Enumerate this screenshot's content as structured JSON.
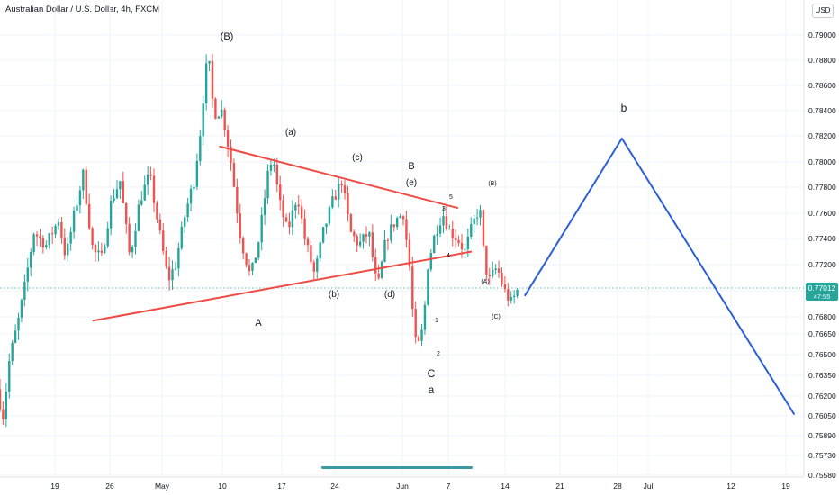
{
  "header": {
    "title": "Australian Dollar / U.S. Dollar, 4h, FXCM",
    "currency_button": "USD"
  },
  "colors": {
    "up": "#26a69a",
    "down": "#ef5350",
    "wave_red": "#ef4a43",
    "projection_blue": "#2b5fd9",
    "last_price_bg": "#26a69a",
    "scrollbar": "#3a9aa3"
  },
  "last_price": {
    "value": "0.77012",
    "countdown": "47:55"
  },
  "chart_data": {
    "type": "candlestick",
    "title": "Australian Dollar / U.S. Dollar, 4h, FXCM",
    "ylim": [
      0.7558,
      0.7921
    ],
    "y_ticks": [
      "0.79000",
      "0.78800",
      "0.78600",
      "0.78400",
      "0.78200",
      "0.78000",
      "0.77800",
      "0.77600",
      "0.77400",
      "0.77200",
      "0.77000",
      "0.76800",
      "0.76650",
      "0.76500",
      "0.76350",
      "0.76200",
      "0.76050",
      "0.75890",
      "0.75730",
      "0.75580"
    ],
    "x_ticks": [
      "19",
      "26",
      "May",
      "10",
      "17",
      "24",
      "Jun",
      "7",
      "14",
      "21",
      "28",
      "Jul",
      "12",
      "19"
    ],
    "price_path": [
      [
        0.0,
        0.7625
      ],
      [
        0.5,
        0.7605
      ],
      [
        1.0,
        0.7645
      ],
      [
        1.6,
        0.767
      ],
      [
        2.2,
        0.77
      ],
      [
        3.0,
        0.7745
      ],
      [
        4.0,
        0.7735
      ],
      [
        5.0,
        0.7755
      ],
      [
        5.6,
        0.7725
      ],
      [
        6.3,
        0.776
      ],
      [
        7.0,
        0.779
      ],
      [
        7.8,
        0.773
      ],
      [
        8.5,
        0.7725
      ],
      [
        9.3,
        0.777
      ],
      [
        10.0,
        0.7785
      ],
      [
        10.8,
        0.7725
      ],
      [
        11.6,
        0.777
      ],
      [
        12.4,
        0.779
      ],
      [
        13.2,
        0.7745
      ],
      [
        13.9,
        0.7708
      ],
      [
        14.5,
        0.772
      ],
      [
        15.3,
        0.776
      ],
      [
        16.0,
        0.7785
      ],
      [
        16.6,
        0.783
      ],
      [
        16.9,
        0.787
      ],
      [
        17.2,
        0.788
      ],
      [
        17.6,
        0.7838
      ],
      [
        18.3,
        0.784
      ],
      [
        19.0,
        0.78
      ],
      [
        19.8,
        0.774
      ],
      [
        20.6,
        0.771
      ],
      [
        21.3,
        0.774
      ],
      [
        22.0,
        0.779
      ],
      [
        22.4,
        0.7805
      ],
      [
        22.9,
        0.777
      ],
      [
        23.6,
        0.7745
      ],
      [
        24.4,
        0.7775
      ],
      [
        25.0,
        0.774
      ],
      [
        25.8,
        0.7712
      ],
      [
        26.5,
        0.7745
      ],
      [
        27.3,
        0.777
      ],
      [
        28.0,
        0.7785
      ],
      [
        28.7,
        0.7745
      ],
      [
        29.4,
        0.7735
      ],
      [
        30.2,
        0.7745
      ],
      [
        30.9,
        0.77
      ],
      [
        31.6,
        0.774
      ],
      [
        32.4,
        0.7755
      ],
      [
        33.0,
        0.776
      ],
      [
        33.6,
        0.771
      ],
      [
        33.9,
        0.766
      ],
      [
        34.2,
        0.7655
      ],
      [
        34.6,
        0.767
      ],
      [
        35.0,
        0.772
      ],
      [
        35.6,
        0.7745
      ],
      [
        36.2,
        0.776
      ],
      [
        36.8,
        0.7745
      ],
      [
        37.4,
        0.774
      ],
      [
        38.0,
        0.773
      ],
      [
        38.6,
        0.775
      ],
      [
        39.2,
        0.7765
      ],
      [
        39.6,
        0.772
      ],
      [
        40.0,
        0.7708
      ],
      [
        40.6,
        0.7718
      ],
      [
        41.2,
        0.77
      ],
      [
        41.8,
        0.769
      ],
      [
        42.2,
        0.77
      ]
    ],
    "annotations": [
      {
        "text": "(B)",
        "color": "red",
        "role": "wave"
      },
      {
        "text": "(a)",
        "role": "wave"
      },
      {
        "text": "(c)",
        "role": "wave"
      },
      {
        "text": "(e)",
        "role": "wave"
      },
      {
        "text": "B",
        "role": "wave"
      },
      {
        "text": "A",
        "role": "wave"
      },
      {
        "text": "(b)",
        "role": "wave"
      },
      {
        "text": "(d)",
        "role": "wave"
      },
      {
        "text": "C",
        "role": "wave"
      },
      {
        "text": "a",
        "role": "wave"
      },
      {
        "text": "b",
        "role": "wave"
      },
      {
        "text": "1",
        "role": "minor"
      },
      {
        "text": "2",
        "role": "minor"
      },
      {
        "text": "3",
        "role": "minor"
      },
      {
        "text": "4",
        "role": "minor"
      },
      {
        "text": "5",
        "role": "minor"
      },
      {
        "text": "(B)",
        "role": "minor"
      },
      {
        "text": "(A)",
        "role": "minor"
      },
      {
        "text": "(C)",
        "role": "minor"
      }
    ],
    "grid": true,
    "triangle_upper": [
      [
        17.8,
        0.7812
      ],
      [
        37.2,
        0.7764
      ]
    ],
    "triangle_lower": [
      [
        7.5,
        0.76765
      ],
      [
        38.3,
        0.773
      ]
    ],
    "projection": [
      [
        42.6,
        0.7696
      ],
      [
        50.5,
        0.7818
      ],
      [
        64.5,
        0.7606
      ]
    ]
  }
}
